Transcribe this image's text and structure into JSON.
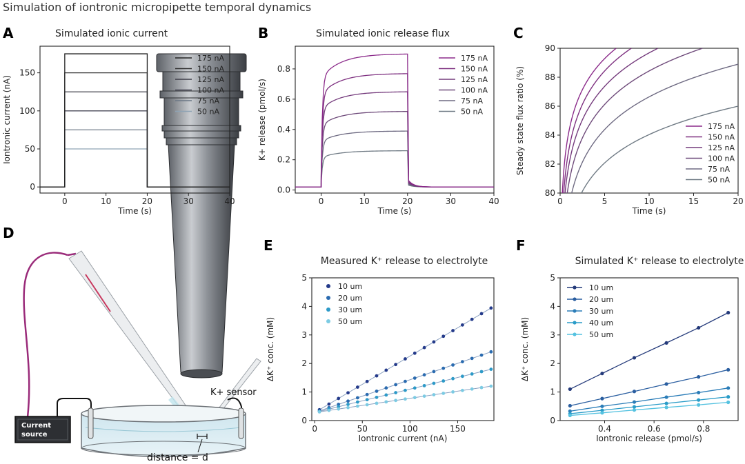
{
  "figure_title": "Simulation of iontronic micropipette temporal dynamics",
  "chart_data": [
    {
      "panel": "A",
      "type": "line",
      "title": "Simulated ionic current",
      "xlabel": "Time (s)",
      "ylabel": "Iontronic current (nA)",
      "xlim": [
        -6,
        40
      ],
      "ylim": [
        -8,
        185
      ],
      "xticks": [
        0,
        10,
        20,
        30,
        40
      ],
      "yticks": [
        0,
        50,
        100,
        150
      ],
      "pulse": {
        "on": 0,
        "off": 20
      },
      "legend_position": "top-right",
      "series": [
        {
          "name": "175 nA",
          "level": 175,
          "color": "#222222"
        },
        {
          "name": "150 nA",
          "level": 150,
          "color": "#333333"
        },
        {
          "name": "125 nA",
          "level": 125,
          "color": "#3d3d48"
        },
        {
          "name": "100 nA",
          "level": 100,
          "color": "#4a4a58"
        },
        {
          "name": "75 nA",
          "level": 75,
          "color": "#6b7785"
        },
        {
          "name": "50 nA",
          "level": 50,
          "color": "#8ea3b4"
        }
      ]
    },
    {
      "panel": "B",
      "type": "line",
      "title": "Simulated ionic release flux",
      "xlabel": "Time (s)",
      "ylabel": "K+ release (pmol/s)",
      "xlim": [
        -6,
        40
      ],
      "ylim": [
        -0.02,
        0.95
      ],
      "xticks": [
        0,
        10,
        20,
        30,
        40
      ],
      "yticks": [
        0.0,
        0.2,
        0.4,
        0.6,
        0.8
      ],
      "baseline": 0.02,
      "pulse": {
        "on": 0,
        "off": 20
      },
      "legend_position": "top-right",
      "series": [
        {
          "name": "175 nA",
          "plateau": 0.9,
          "color": "#8b2a8a"
        },
        {
          "name": "150 nA",
          "plateau": 0.77,
          "color": "#7e3080"
        },
        {
          "name": "125 nA",
          "plateau": 0.65,
          "color": "#743a7c"
        },
        {
          "name": "100 nA",
          "plateau": 0.52,
          "color": "#6e4a7a"
        },
        {
          "name": "75 nA",
          "plateau": 0.39,
          "color": "#6e6a82"
        },
        {
          "name": "50 nA",
          "plateau": 0.26,
          "color": "#6f7a84"
        }
      ]
    },
    {
      "panel": "C",
      "type": "line",
      "title": "",
      "xlabel": "Time (s)",
      "ylabel": "Steady state flux ratio (%)",
      "xlim": [
        0,
        20
      ],
      "ylim": [
        80,
        90
      ],
      "xticks": [
        0,
        5,
        10,
        15,
        20
      ],
      "yticks": [
        80,
        82,
        84,
        86,
        88,
        90
      ],
      "legend_position": "lower-right",
      "series": [
        {
          "name": "175 nA",
          "start_x": 0.25,
          "reach90_x": 6.3,
          "color": "#8b2a8a"
        },
        {
          "name": "150 nA",
          "start_x": 0.4,
          "reach90_x": 8.0,
          "color": "#7e3080"
        },
        {
          "name": "125 nA",
          "start_x": 0.55,
          "reach90_x": 11.0,
          "color": "#743a7c"
        },
        {
          "name": "100 nA",
          "start_x": 0.8,
          "reach90_x": 16.0,
          "color": "#6e4a7a"
        },
        {
          "name": "75 nA",
          "start_x": 1.3,
          "end_y": 88.9,
          "color": "#6e6a82"
        },
        {
          "name": "50 nA",
          "start_x": 2.4,
          "end_y": 86.0,
          "color": "#6f7a84"
        }
      ]
    },
    {
      "panel": "E",
      "type": "scatter",
      "title": "Measured K⁺ release to electrolyte",
      "xlabel": "Iontronic current (nA)",
      "ylabel": "ΔK⁺ conc. (mM)",
      "xlim": [
        -3,
        188
      ],
      "ylim": [
        0,
        5
      ],
      "xticks": [
        0,
        50,
        100,
        150
      ],
      "yticks": [
        0,
        1,
        2,
        3,
        4,
        5
      ],
      "legend_position": "top-left",
      "x": [
        5,
        15,
        25,
        35,
        45,
        55,
        65,
        75,
        85,
        95,
        105,
        115,
        125,
        135,
        145,
        155,
        165,
        175,
        185
      ],
      "series": [
        {
          "name": "10 um",
          "intercept": 0.28,
          "slope": 0.0198,
          "color": "#243a8a"
        },
        {
          "name": "20 um",
          "intercept": 0.28,
          "slope": 0.0115,
          "color": "#2a6bb0"
        },
        {
          "name": "30 um",
          "intercept": 0.28,
          "slope": 0.0082,
          "color": "#2d9ac8"
        },
        {
          "name": "50 um",
          "intercept": 0.28,
          "slope": 0.005,
          "color": "#7ccbe3"
        }
      ]
    },
    {
      "panel": "F",
      "type": "line",
      "title": "Simulated K⁺ release to electrolyte",
      "xlabel": "Iontronic release (pmol/s)",
      "ylabel": "ΔK⁺ conc. (mM)",
      "xlim": [
        0.22,
        0.94
      ],
      "ylim": [
        0,
        5
      ],
      "xticks": [
        0.4,
        0.6,
        0.8
      ],
      "yticks": [
        0,
        1,
        2,
        3,
        4,
        5
      ],
      "legend_position": "top-left",
      "x": [
        0.26,
        0.39,
        0.52,
        0.65,
        0.78,
        0.9
      ],
      "series": [
        {
          "name": "10 um",
          "values": [
            1.1,
            1.65,
            2.2,
            2.72,
            3.25,
            3.78
          ],
          "color": "#243a7a"
        },
        {
          "name": "20 um",
          "values": [
            0.52,
            0.77,
            1.02,
            1.28,
            1.53,
            1.78
          ],
          "color": "#2a5ea0"
        },
        {
          "name": "30 um",
          "values": [
            0.33,
            0.5,
            0.65,
            0.82,
            0.98,
            1.14
          ],
          "color": "#2b7db8"
        },
        {
          "name": "40 um",
          "values": [
            0.24,
            0.36,
            0.48,
            0.6,
            0.72,
            0.83
          ],
          "color": "#2a9cc8"
        },
        {
          "name": "50 um",
          "values": [
            0.18,
            0.27,
            0.37,
            0.46,
            0.55,
            0.64
          ],
          "color": "#55c2e0"
        }
      ]
    }
  ],
  "diagram_D": {
    "panel": "D",
    "labels": {
      "source_line1": "Current",
      "source_line2": "source",
      "sensor": "K+ sensor",
      "distance": "distance = d"
    }
  },
  "panel_letters": [
    "A",
    "B",
    "C",
    "D",
    "E",
    "F"
  ]
}
